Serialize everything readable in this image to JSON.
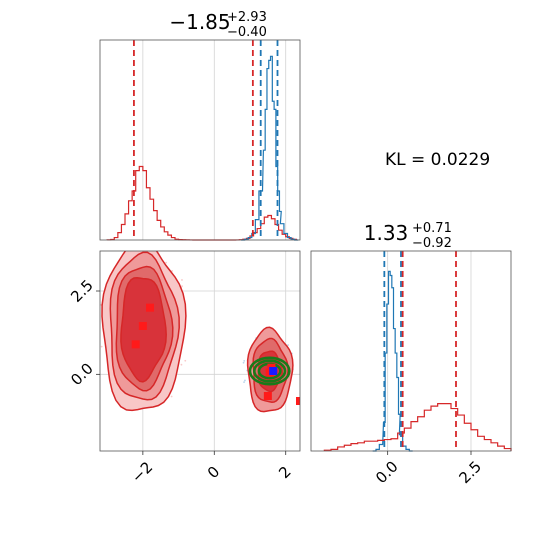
{
  "titles": {
    "top_left": {
      "main": "−1.85",
      "sup": "+2.93",
      "sub": "−0.40"
    },
    "bottom_right": {
      "main": "1.33",
      "sup": "+0.71",
      "sub": "−0.92"
    }
  },
  "kl_text": "KL = 0.0229",
  "colors": {
    "red_series": "#d62728",
    "blue_series": "#1f77b4",
    "green_contour": "#1a7a1a",
    "grid": "#d3d3d3"
  },
  "chart_data": [
    {
      "panel": "top-left",
      "type": "line",
      "description_of_axes": "marginal histogram of parameter 1",
      "xlim": [
        -3.2,
        2.4
      ],
      "grid": true,
      "series": [
        {
          "color": "red",
          "x": [
            -2.95,
            -2.85,
            -2.75,
            -2.65,
            -2.55,
            -2.45,
            -2.35,
            -2.25,
            -2.15,
            -2.05,
            -1.95,
            -1.85,
            -1.75,
            -1.65,
            -1.55,
            -1.45,
            -1.35,
            -1.25,
            -1.15,
            -1.05,
            -0.95,
            -0.85,
            -0.75,
            -0.65,
            -0.55,
            -0.45,
            -0.35,
            -0.25,
            -0.15,
            -0.05,
            0.05,
            0.15,
            0.25,
            0.35,
            0.45,
            0.55,
            0.65,
            0.75,
            0.85,
            0.95,
            1.05,
            1.15,
            1.25,
            1.35,
            1.45,
            1.55,
            1.65,
            1.75,
            1.85,
            1.95,
            2.05,
            2.15,
            2.25
          ],
          "y": [
            0.002,
            0.006,
            0.03,
            0.09,
            0.19,
            0.32,
            0.48,
            0.6,
            0.85,
            0.9,
            0.85,
            0.64,
            0.5,
            0.36,
            0.24,
            0.16,
            0.1,
            0.06,
            0.03,
            0.01,
            0.005,
            0.003,
            0.002,
            0.001,
            0,
            0,
            0,
            0,
            0,
            0,
            0,
            0,
            0,
            0,
            0,
            0,
            0.001,
            0.004,
            0.01,
            0.02,
            0.05,
            0.09,
            0.14,
            0.2,
            0.28,
            0.3,
            0.26,
            0.19,
            0.12,
            0.07,
            0.04,
            0.02,
            0.008
          ]
        },
        {
          "color": "blue",
          "x": [
            0.8,
            0.9,
            1.0,
            1.1,
            1.2,
            1.3,
            1.4,
            1.45,
            1.5,
            1.55,
            1.6,
            1.65,
            1.7,
            1.75,
            1.8,
            1.85,
            1.9,
            2.0,
            2.1,
            2.2,
            2.3
          ],
          "y": [
            0.0,
            0.01,
            0.03,
            0.08,
            0.25,
            0.6,
            1.1,
            1.6,
            2.1,
            2.2,
            2.25,
            1.7,
            1.6,
            0.9,
            0.6,
            0.35,
            0.2,
            0.08,
            0.03,
            0.01,
            0.0
          ]
        }
      ],
      "vlines": [
        {
          "color": "red",
          "x": -2.25
        },
        {
          "color": "red",
          "x": 1.08
        },
        {
          "color": "blue",
          "x": 1.3
        },
        {
          "color": "blue",
          "x": 1.77
        }
      ],
      "ylim": [
        0,
        2.45
      ]
    },
    {
      "panel": "bottom-left",
      "type": "scatter",
      "description_of_axes": "joint contour of parameter 1 (x) and parameter 2 (y)",
      "xlim": [
        -3.2,
        2.4
      ],
      "ylim": [
        -2.3,
        3.7
      ],
      "xticks": [
        -2,
        0,
        2
      ],
      "yticks": [
        0.0,
        2.5
      ],
      "xtick_labels": [
        "−2",
        "0",
        "2"
      ],
      "ytick_labels": [
        "0.0",
        "2.5"
      ],
      "grid": true,
      "red_blob_1": {
        "cx": -2.0,
        "cy": 1.4,
        "rx": [
          1.15,
          0.95,
          0.78,
          0.62
        ],
        "ry": [
          2.55,
          2.2,
          1.85,
          1.55
        ]
      },
      "red_blob_2": {
        "cx": 1.55,
        "cy": 0.1,
        "rx": [
          0.62,
          0.48,
          0.33
        ],
        "ry": [
          1.25,
          0.95,
          0.6
        ]
      },
      "green_rings": {
        "cx": 1.55,
        "cy": 0.1,
        "r": [
          0.55,
          0.43,
          0.3
        ]
      },
      "red_markers": [
        [
          -1.8,
          2.0
        ],
        [
          -2.0,
          1.45
        ],
        [
          -2.2,
          0.9
        ],
        [
          1.55,
          0.05
        ],
        [
          1.6,
          0.2
        ],
        [
          1.5,
          -0.65
        ],
        [
          2.4,
          -0.8
        ]
      ],
      "blue_marker": [
        1.65,
        0.1
      ]
    },
    {
      "panel": "bottom-right",
      "type": "line",
      "description_of_axes": "marginal histogram of parameter 2",
      "xlim": [
        -2.3,
        3.7
      ],
      "xticks": [
        0.0,
        2.5
      ],
      "xtick_labels": [
        "0.0",
        "2.5"
      ],
      "grid": true,
      "series": [
        {
          "color": "blue",
          "x": [
            -0.4,
            -0.3,
            -0.2,
            -0.1,
            -0.05,
            0.0,
            0.05,
            0.1,
            0.15,
            0.2,
            0.25,
            0.3,
            0.35,
            0.4,
            0.5,
            0.6,
            0.7
          ],
          "y": [
            0.0,
            0.02,
            0.08,
            0.35,
            1.2,
            1.8,
            2.2,
            2.15,
            2.0,
            1.5,
            1.2,
            0.9,
            0.45,
            0.2,
            0.06,
            0.02,
            0.0
          ]
        },
        {
          "color": "red",
          "x": [
            -1.8,
            -1.6,
            -1.4,
            -1.2,
            -1.0,
            -0.8,
            -0.6,
            -0.4,
            -0.2,
            0.0,
            0.2,
            0.4,
            0.6,
            0.8,
            1.0,
            1.2,
            1.4,
            1.6,
            1.8,
            2.0,
            2.2,
            2.4,
            2.6,
            2.8,
            3.0,
            3.2,
            3.4,
            3.6
          ],
          "y": [
            0.01,
            0.02,
            0.05,
            0.07,
            0.09,
            0.1,
            0.12,
            0.12,
            0.13,
            0.14,
            0.15,
            0.22,
            0.28,
            0.36,
            0.42,
            0.5,
            0.55,
            0.58,
            0.58,
            0.52,
            0.44,
            0.34,
            0.26,
            0.18,
            0.14,
            0.1,
            0.06,
            0.03
          ]
        }
      ],
      "vlines": [
        {
          "color": "blue",
          "x": -0.1
        },
        {
          "color": "blue",
          "x": 0.4
        },
        {
          "color": "red",
          "x": 0.45
        },
        {
          "color": "red",
          "x": 2.05
        }
      ],
      "ylim": [
        0,
        2.45
      ]
    }
  ]
}
